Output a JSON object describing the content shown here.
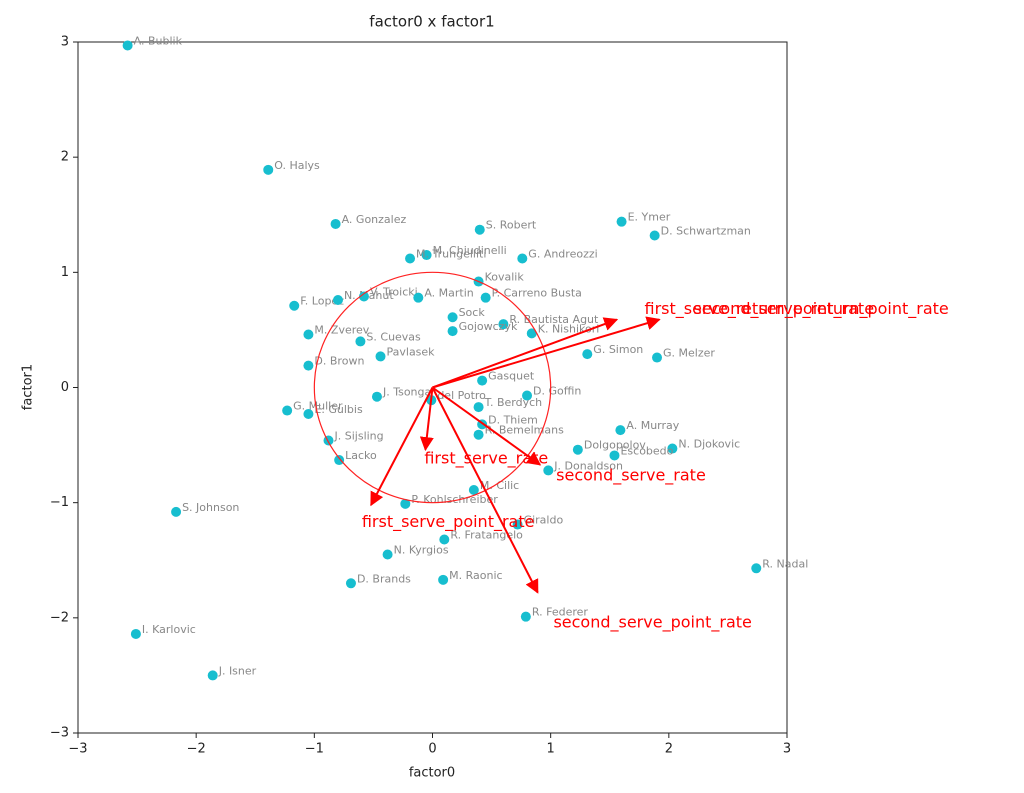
{
  "chart_data": {
    "type": "scatter",
    "title": "factor0 x factor1",
    "xlabel": "factor0",
    "ylabel": "factor1",
    "xlim": [
      -3,
      3
    ],
    "ylim": [
      -3,
      3
    ],
    "xticks": [
      {
        "value": -3,
        "label": "−3"
      },
      {
        "value": -2,
        "label": "−2"
      },
      {
        "value": -1,
        "label": "−1"
      },
      0,
      1,
      2,
      3
    ],
    "yticks": [
      {
        "value": -3,
        "label": "−3"
      },
      {
        "value": -2,
        "label": "−2"
      },
      {
        "value": -1,
        "label": "−1"
      },
      0,
      1,
      2,
      3
    ],
    "circle_radius": 1,
    "circle_color": "#f22",
    "points": {
      "color": "#17becf",
      "labels": [
        "A. Bublik",
        "O. Halys",
        "A. Gonzalez",
        "S. Robert",
        "E. Ymer",
        "D. Schwartzman",
        "M. Chiudinelli",
        "G. Andreozzi",
        "M. Trungelliti",
        "Kovalik",
        "F. Lopez",
        "N. Mahut",
        "V. Troicki",
        "A. Martin",
        "P. Carreno Busta",
        "R. Bautista Agut",
        "K. Nishikori",
        "M. Zverev",
        "S. Cuevas",
        "G. Simon",
        "G. Melzer",
        "D. Brown",
        "Pavlasek",
        "G. Muller",
        "E. Gulbis",
        "J. Tsonga",
        "D. Goffin",
        "T. Berdych",
        "D. Thiem",
        "J. Sijsling",
        "A. Murray",
        "N. Djokovic",
        "R. Bemelmans",
        "Dolgopolov",
        "Escobedo",
        "J. Donaldson",
        "M. Cilic",
        "P. Kohlschreiber",
        "S. Johnson",
        "R. Fratangelo",
        "N. Kyrgios",
        "Giraldo",
        "D. Brands",
        "M. Raonic",
        "R. Federer",
        "R. Nadal",
        "I. Karlovic",
        "J. Isner",
        "Gasquet",
        "Lacko",
        "Gojowczyk",
        "Sock",
        "del Potro"
      ],
      "x": [
        -2.58,
        -1.39,
        -0.82,
        0.4,
        1.6,
        1.88,
        -0.05,
        0.76,
        -0.19,
        0.39,
        -1.17,
        -0.8,
        -0.58,
        -0.12,
        0.45,
        0.6,
        0.84,
        -1.05,
        -0.61,
        1.31,
        1.9,
        -1.05,
        -0.44,
        -1.23,
        -1.05,
        -0.47,
        0.8,
        0.39,
        0.42,
        -0.88,
        1.59,
        2.03,
        0.39,
        1.23,
        1.54,
        0.98,
        0.35,
        -0.23,
        -2.17,
        0.1,
        -0.38,
        0.72,
        -0.69,
        0.09,
        0.79,
        2.74,
        -2.51,
        -1.86,
        0.42,
        -0.79,
        0.17,
        0.17,
        -0.01
      ],
      "y": [
        2.97,
        1.89,
        1.42,
        1.37,
        1.44,
        1.32,
        1.15,
        1.12,
        1.12,
        0.92,
        0.71,
        0.76,
        0.79,
        0.78,
        0.78,
        0.55,
        0.47,
        0.46,
        0.4,
        0.29,
        0.26,
        0.19,
        0.27,
        -0.2,
        -0.23,
        -0.08,
        -0.07,
        -0.17,
        -0.32,
        -0.46,
        -0.37,
        -0.53,
        -0.41,
        -0.54,
        -0.59,
        -0.72,
        -0.89,
        -1.01,
        -1.08,
        -1.32,
        -1.45,
        -1.19,
        -1.7,
        -1.67,
        -1.99,
        -1.57,
        -2.14,
        -2.5,
        0.06,
        -0.63,
        0.49,
        0.61,
        -0.11
      ]
    },
    "vectors": {
      "color": "#f00",
      "names": [
        "first_serve_return_point_rate",
        "second_serve_return_point_rate",
        "first_serve_rate",
        "second_serve_rate",
        "first_serve_point_rate",
        "second_serve_point_rate"
      ],
      "x": [
        1.56,
        1.92,
        -0.06,
        0.91,
        -0.52,
        0.89
      ],
      "y": [
        0.59,
        0.59,
        -0.54,
        -0.67,
        -1.02,
        -1.78
      ]
    }
  }
}
